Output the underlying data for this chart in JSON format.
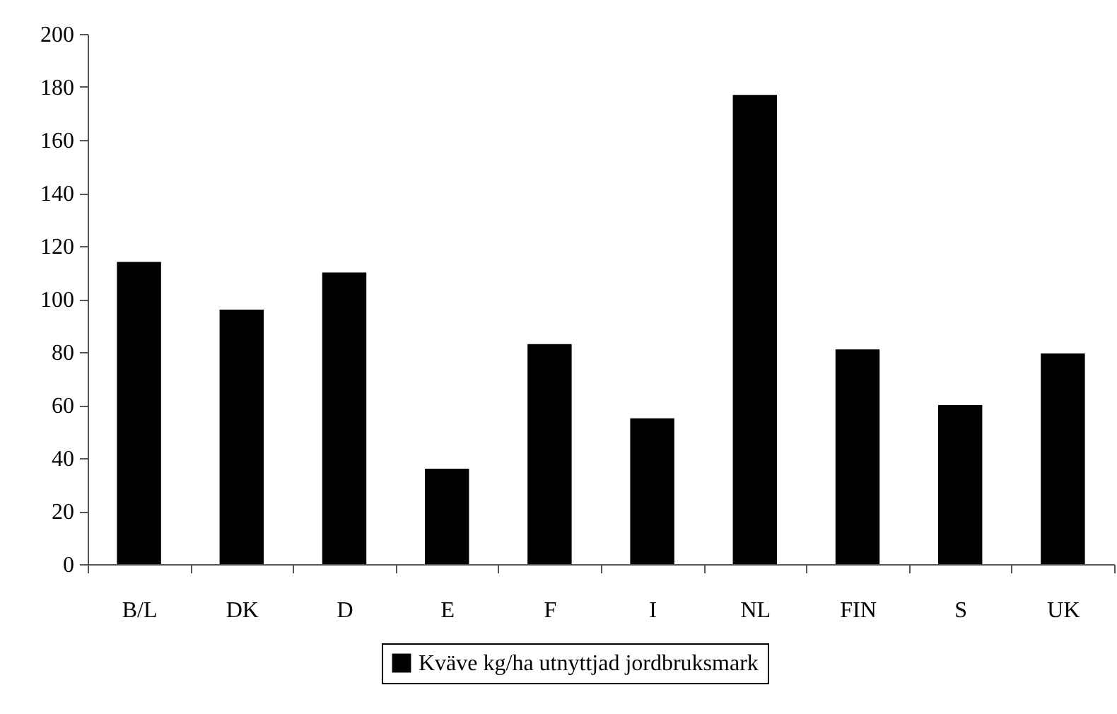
{
  "chart_data": {
    "type": "bar",
    "categories": [
      "B/L",
      "DK",
      "D",
      "E",
      "F",
      "I",
      "NL",
      "FIN",
      "S",
      "UK"
    ],
    "series": [
      {
        "name": "Kväve kg/ha utnyttjad jordbruksmark",
        "color": "#000000",
        "values": [
          114,
          96,
          110,
          36,
          83,
          55,
          177,
          81,
          60,
          79.5
        ]
      }
    ],
    "ylim": [
      0,
      200
    ],
    "yticks": [
      0,
      20,
      40,
      60,
      80,
      100,
      120,
      140,
      160,
      180,
      200
    ],
    "grid": false,
    "legend": "bottom"
  }
}
